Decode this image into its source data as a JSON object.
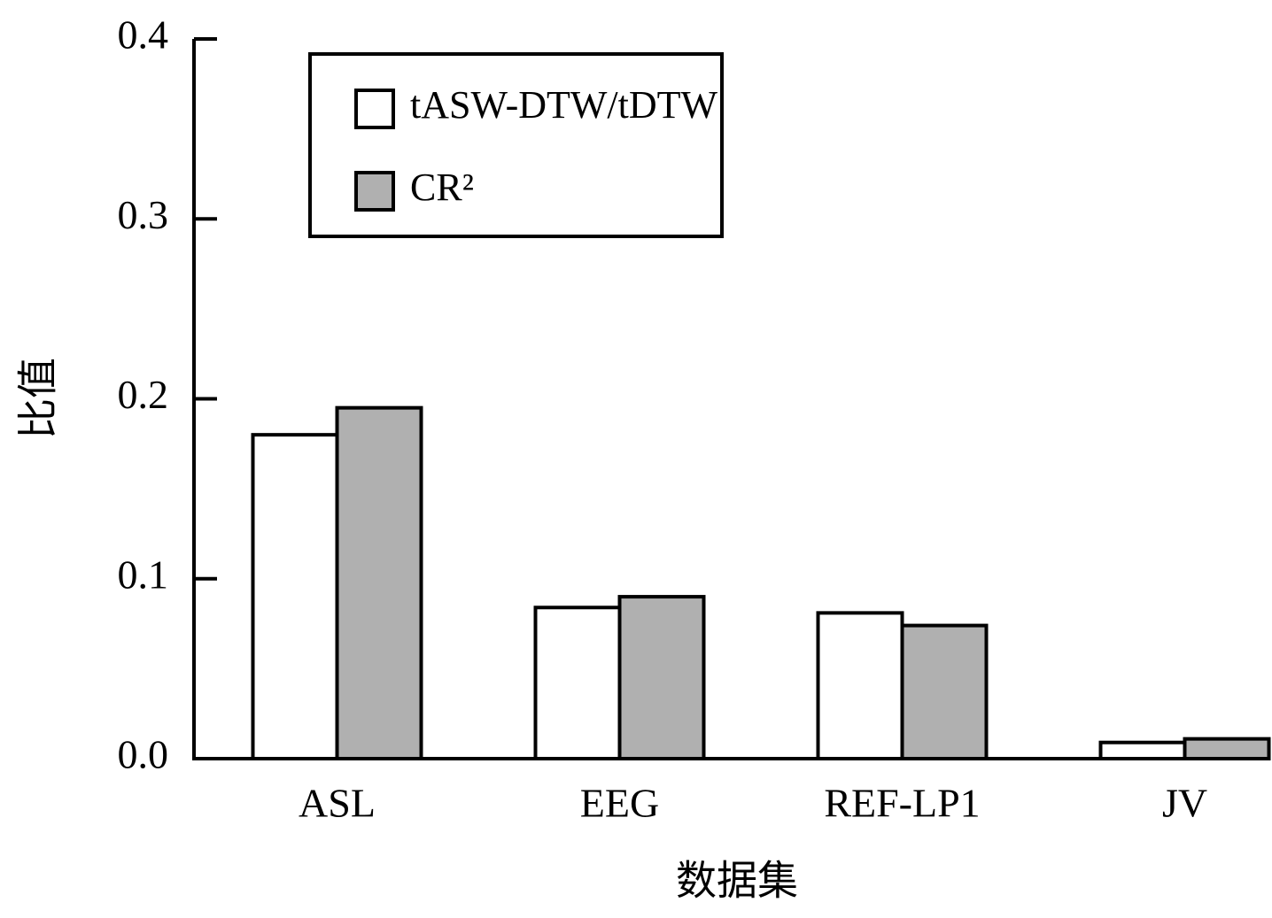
{
  "chart_data": {
    "type": "bar",
    "y_label": "比值",
    "x_label": "数据集",
    "categories": [
      "ASL",
      "EEG",
      "REF-LP1",
      "JV"
    ],
    "series": [
      {
        "name": "tASW-DTW/tDTW",
        "color": "#ffffff",
        "values": [
          0.18,
          0.084,
          0.081,
          0.009
        ]
      },
      {
        "name": "CR²",
        "color": "#b0b0b0",
        "values": [
          0.195,
          0.09,
          0.074,
          0.011
        ]
      }
    ],
    "ylim": [
      0,
      0.4
    ],
    "yticks": [
      {
        "value": 0,
        "label": "0.0"
      },
      0.1,
      0.2,
      0.3,
      0.4
    ],
    "legend": "upper-left",
    "grid": false
  }
}
